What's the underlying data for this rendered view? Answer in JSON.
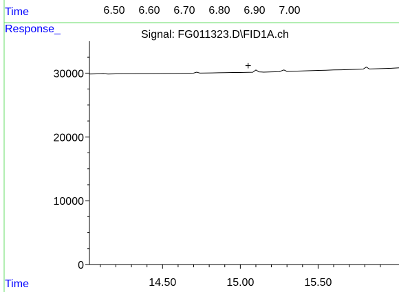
{
  "chart_data": {
    "type": "line",
    "title": "Signal: FG011323.D\\FID1A.ch",
    "ylabel": "Response_",
    "xlabel": "Time",
    "top_axis": {
      "label": "Time",
      "ticks": [
        "6.50",
        "6.60",
        "6.70",
        "6.80",
        "6.90",
        "7.00"
      ],
      "values": [
        6.5,
        6.6,
        6.7,
        6.8,
        6.9,
        7.0
      ]
    },
    "x_ticks": [
      "14.50",
      "15.00",
      "15.50"
    ],
    "x_tick_values": [
      14.5,
      15.0,
      15.5
    ],
    "y_ticks": [
      "0",
      "10000",
      "20000",
      "30000"
    ],
    "y_tick_values": [
      0,
      10000,
      20000,
      30000
    ],
    "xlim": [
      14.03,
      16.02
    ],
    "ylim": [
      0,
      35000
    ],
    "marker": {
      "symbol": "+",
      "x": 15.05,
      "y": 30800
    },
    "series": [
      {
        "values": [
          [
            14.03,
            29850
          ],
          [
            14.08,
            29880
          ],
          [
            14.12,
            29920
          ],
          [
            14.15,
            29860
          ],
          [
            14.2,
            29880
          ],
          [
            14.25,
            29900
          ],
          [
            14.3,
            29890
          ],
          [
            14.35,
            29910
          ],
          [
            14.4,
            29920
          ],
          [
            14.45,
            29930
          ],
          [
            14.5,
            29940
          ],
          [
            14.55,
            29950
          ],
          [
            14.6,
            29960
          ],
          [
            14.65,
            29980
          ],
          [
            14.7,
            30000
          ],
          [
            14.72,
            30150
          ],
          [
            14.74,
            30000
          ],
          [
            14.78,
            30020
          ],
          [
            14.82,
            30040
          ],
          [
            14.86,
            30060
          ],
          [
            14.9,
            30080
          ],
          [
            14.95,
            30100
          ],
          [
            15.0,
            30100
          ],
          [
            15.05,
            30120
          ],
          [
            15.08,
            30140
          ],
          [
            15.1,
            30500
          ],
          [
            15.12,
            30200
          ],
          [
            15.15,
            30150
          ],
          [
            15.2,
            30200
          ],
          [
            15.25,
            30220
          ],
          [
            15.28,
            30500
          ],
          [
            15.3,
            30260
          ],
          [
            15.35,
            30300
          ],
          [
            15.4,
            30340
          ],
          [
            15.45,
            30380
          ],
          [
            15.5,
            30420
          ],
          [
            15.55,
            30460
          ],
          [
            15.6,
            30500
          ],
          [
            15.65,
            30520
          ],
          [
            15.7,
            30560
          ],
          [
            15.75,
            30600
          ],
          [
            15.79,
            30640
          ],
          [
            15.81,
            30950
          ],
          [
            15.83,
            30650
          ],
          [
            15.87,
            30680
          ],
          [
            15.92,
            30720
          ],
          [
            15.97,
            30760
          ],
          [
            16.02,
            30820
          ]
        ]
      }
    ],
    "colors": {
      "label": "#0000ff",
      "frame": "#00cc00",
      "trace": "#000000"
    },
    "grid": false
  }
}
